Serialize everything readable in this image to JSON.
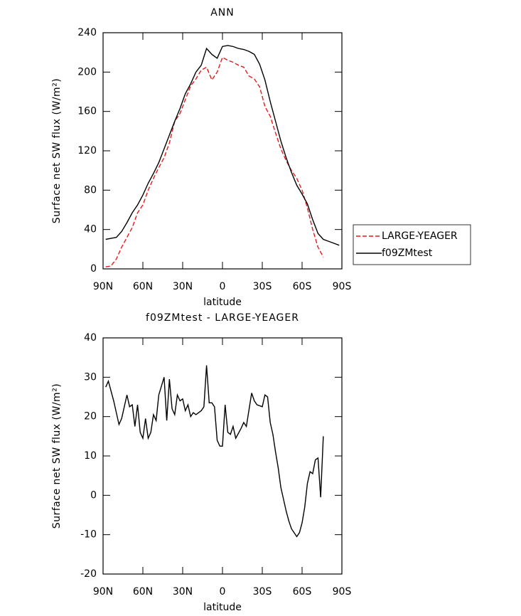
{
  "chart_data": [
    {
      "type": "line",
      "title": "ANN",
      "x_label": "latitude",
      "y_label": "Surface net SW flux (W/m²)",
      "x": [
        88,
        84,
        80,
        76,
        72,
        68,
        64,
        60,
        56,
        52,
        48,
        44,
        40,
        36,
        32,
        28,
        24,
        20,
        16,
        12,
        8,
        4,
        0,
        -4,
        -8,
        -12,
        -16,
        -20,
        -24,
        -28,
        -32,
        -36,
        -40,
        -44,
        -48,
        -52,
        -56,
        -60,
        -64,
        -68,
        -72,
        -76,
        -80,
        -84,
        -88
      ],
      "series": [
        {
          "name": "LARGE-YEAGER",
          "color": "#e41a1c",
          "dashed": true,
          "values": [
            2,
            3,
            10,
            22,
            32,
            42,
            57,
            65,
            80,
            92,
            103,
            113,
            128,
            150,
            158,
            172,
            186,
            193,
            202,
            205,
            192,
            200,
            215,
            212,
            210,
            207,
            205,
            196,
            193,
            185,
            165,
            155,
            138,
            122,
            110,
            100,
            92,
            80,
            62,
            40,
            22,
            12,
            null,
            null,
            null
          ]
        },
        {
          "name": "f09ZMtest",
          "color": "#000000",
          "dashed": false,
          "values": [
            30,
            31,
            32,
            38,
            47,
            57,
            65,
            75,
            87,
            97,
            108,
            122,
            136,
            150,
            163,
            178,
            188,
            200,
            207,
            224,
            218,
            214,
            226,
            227,
            226,
            224,
            223,
            221,
            218,
            208,
            192,
            170,
            150,
            130,
            113,
            98,
            85,
            76,
            66,
            50,
            36,
            30,
            28,
            26,
            24
          ]
        }
      ],
      "xlim": [
        90,
        -90
      ],
      "xticks": [
        {
          "value": 90,
          "label": "90N"
        },
        {
          "value": 60,
          "label": "60N"
        },
        {
          "value": 30,
          "label": "30N"
        },
        0,
        {
          "value": -30,
          "label": "30S"
        },
        {
          "value": -60,
          "label": "60S"
        },
        {
          "value": -90,
          "label": "90S"
        }
      ],
      "ylim": [
        0,
        240
      ],
      "yticks": [
        0,
        40,
        80,
        120,
        160,
        200,
        240
      ],
      "legend": "right"
    },
    {
      "type": "line",
      "title": "f09ZMtest - LARGE-YEAGER",
      "x_label": "latitude",
      "y_label": "Surface net SW flux (W/m²)",
      "x": [
        88,
        86,
        82,
        78,
        76,
        72,
        70,
        68,
        66,
        64,
        62,
        60,
        58,
        56,
        54,
        52,
        50,
        48,
        44,
        42,
        40,
        38,
        36,
        34,
        32,
        30,
        28,
        26,
        24,
        22,
        20,
        16,
        14,
        12,
        10,
        8,
        6,
        4,
        2,
        0,
        -2,
        -4,
        -6,
        -8,
        -10,
        -14,
        -16,
        -18,
        -22,
        -24,
        -26,
        -30,
        -32,
        -34,
        -36,
        -38,
        -40,
        -42,
        -44,
        -46,
        -48,
        -50,
        -52,
        -54,
        -56,
        -58,
        -60,
        -62,
        -64,
        -66,
        -68,
        -70,
        -72,
        -74,
        -76
      ],
      "values": [
        27.5,
        29,
        24,
        18,
        19.5,
        25.5,
        22.5,
        23,
        17.5,
        23,
        16,
        14.5,
        19.5,
        14.5,
        16,
        20.5,
        19,
        25.5,
        30,
        19,
        29.5,
        22,
        20.5,
        25.5,
        24,
        24.5,
        21.5,
        23,
        20,
        21,
        20.5,
        21.5,
        22.5,
        33,
        23.5,
        23.5,
        22.5,
        14,
        12.5,
        12.5,
        23,
        16,
        15.5,
        17.5,
        14.5,
        17,
        18.5,
        17.5,
        26,
        24,
        23,
        22.5,
        25.5,
        25,
        18.5,
        15.5,
        11,
        7,
        2,
        -1,
        -4,
        -6.5,
        -8.5,
        -9.5,
        -10.5,
        -9.5,
        -7,
        -3,
        3,
        6,
        5.5,
        9,
        9.5,
        -0.5,
        15
      ],
      "color": "#000000",
      "xlim": [
        90,
        -90
      ],
      "xticks": [
        {
          "value": 90,
          "label": "90N"
        },
        {
          "value": 60,
          "label": "60N"
        },
        {
          "value": 30,
          "label": "30N"
        },
        0,
        {
          "value": -30,
          "label": "30S"
        },
        {
          "value": -60,
          "label": "60S"
        },
        {
          "value": -90,
          "label": "90S"
        }
      ],
      "ylim": [
        -20,
        40
      ],
      "yticks": [
        -20,
        -10,
        0,
        10,
        20,
        30,
        40
      ]
    }
  ]
}
